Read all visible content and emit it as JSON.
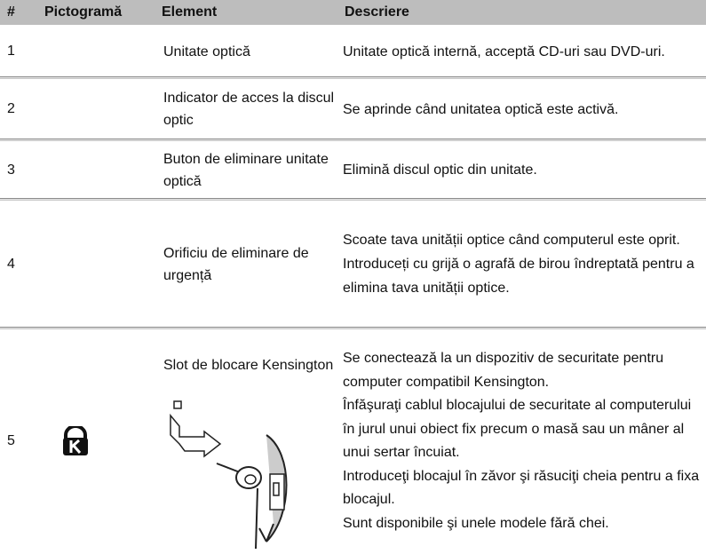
{
  "table": {
    "header": [
      "#",
      "Pictogramă",
      "Element",
      "Descriere"
    ],
    "rows": [
      [
        "1",
        "Unitate optică",
        [
          "Unitate optică internă, acceptă CD-uri sau DVD-uri."
        ]
      ],
      [
        "2",
        "Indicator de acces la discul optic",
        [
          "Se aprinde când unitatea optică este activă."
        ]
      ],
      [
        "3",
        "Buton de eliminare unitate optică",
        [
          "Elimină discul optic din unitate."
        ]
      ],
      [
        "4",
        "Orificiu de eliminare de urgență",
        [
          "Scoate tava unității optice când computerul este oprit.",
          "Introduceți cu grijă o agrafă de birou îndreptată pentru a elimina tava unității optice."
        ]
      ],
      [
        "5",
        "Slot de blocare Kensington",
        [
          "Se conectează la un dispozitiv de securitate pentru computer compatibil Kensington.",
          "Înfăşuraţi cablul blocajului de securitate al computerului în jurul unui obiect fix precum o masă sau un mâner al unui sertar încuiat.",
          "Introduceţi blocajul în zăvor şi răsuciţi cheia pentru a fixa blocajul.",
          "Sunt disponibile şi unele modele fără chei."
        ]
      ]
    ]
  }
}
